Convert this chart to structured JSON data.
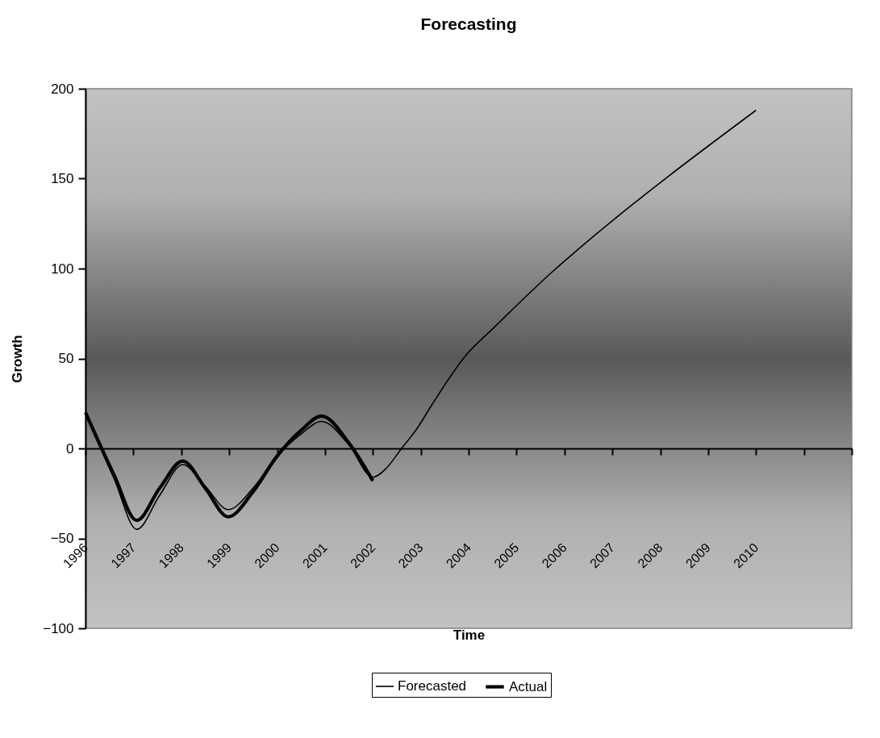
{
  "chart_data": {
    "type": "line",
    "title": "Forecasting",
    "xlabel": "Time",
    "ylabel": "Growth",
    "xlim": [
      1996,
      2012
    ],
    "xticks": [
      1996,
      1997,
      1998,
      1999,
      2000,
      2001,
      2002,
      2003,
      2004,
      2005,
      2006,
      2007,
      2008,
      2009,
      2010,
      {
        "value": 2011,
        "label": null
      },
      {
        "value": 2012,
        "label": null
      }
    ],
    "ylim": [
      -100,
      200
    ],
    "yticks": [
      -100,
      -50,
      0,
      50,
      100,
      150,
      200
    ],
    "legend": "bottom",
    "series": [
      {
        "name": "Forecasted",
        "color": "#000000",
        "x": [
          1996,
          1996.6,
          1997.07,
          1997.55,
          1998.03,
          1998.5,
          1998.98,
          1999.5,
          1999.98,
          2000.5,
          2000.93,
          2001.5,
          2002,
          2002.28,
          2002.6,
          2002.92,
          2003.25,
          2003.95,
          2004.52,
          2004.75,
          2005.78,
          2006.3,
          2010
        ],
        "values": [
          19,
          -17,
          -45,
          -26,
          -9,
          -21,
          -34,
          -22,
          -5,
          8,
          15,
          2,
          -16,
          -11,
          0,
          11,
          25,
          52,
          67,
          73,
          99,
          111,
          188
        ]
      },
      {
        "name": "Actual",
        "color": "#000000",
        "x": [
          1996,
          1996.6,
          1997.07,
          1997.55,
          1998.03,
          1998.5,
          1998.98,
          1999.5,
          1999.98,
          2000.5,
          2000.93,
          2001.5,
          2002
        ],
        "values": [
          20,
          -15,
          -40,
          -22,
          -7,
          -22,
          -38,
          -24,
          -5,
          10,
          18,
          3,
          -18
        ]
      }
    ]
  }
}
